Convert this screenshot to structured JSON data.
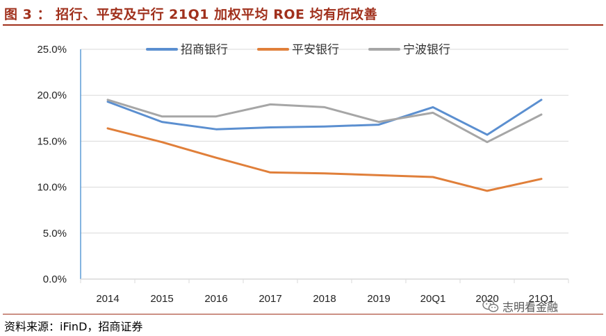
{
  "figure": {
    "title": "图 3 ： 招行、平安及宁行 21Q1 加权平均 ROE 均有所改善",
    "source": "资料来源：iFinD，招商证券",
    "watermark": "志明看金融",
    "watermark_icon": "wechat-icon"
  },
  "colors": {
    "title": "#a0301c",
    "grid": "#d9d9d9",
    "axis": "#5b9bd5"
  },
  "chart_data": {
    "type": "line",
    "title": "",
    "xlabel": "",
    "ylabel": "",
    "categories": [
      "2014",
      "2015",
      "2016",
      "2017",
      "2018",
      "2019",
      "20Q1",
      "2020",
      "21Q1"
    ],
    "ylim": [
      0,
      25
    ],
    "yticks": [
      0,
      5,
      10,
      15,
      20,
      25
    ],
    "ytick_labels": [
      "0.0%",
      "5.0%",
      "10.0%",
      "15.0%",
      "20.0%",
      "25.0%"
    ],
    "grid": true,
    "legend_position": "top",
    "series": [
      {
        "name": "招商银行",
        "color": "#5b8fd0",
        "values": [
          19.3,
          17.1,
          16.3,
          16.5,
          16.6,
          16.8,
          18.7,
          15.7,
          19.5
        ]
      },
      {
        "name": "平安银行",
        "color": "#e07f3a",
        "values": [
          16.4,
          14.9,
          13.2,
          11.6,
          11.5,
          11.3,
          11.1,
          9.6,
          10.9
        ]
      },
      {
        "name": "宁波银行",
        "color": "#a6a6a6",
        "values": [
          19.5,
          17.7,
          17.7,
          19.0,
          18.7,
          17.1,
          18.1,
          14.9,
          17.9
        ]
      }
    ]
  }
}
